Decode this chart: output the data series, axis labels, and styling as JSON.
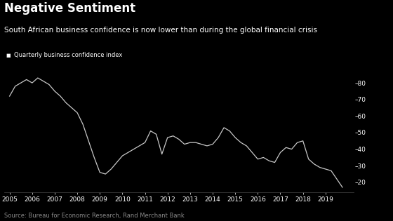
{
  "title": "Negative Sentiment",
  "subtitle": "South African business confidence is now lower than during the global financial crisis",
  "legend_label": "Quarterly business confidence index",
  "source": "Source: Bureau for Economic Research, Rand Merchant Bank",
  "background_color": "#000000",
  "text_color": "#ffffff",
  "line_color": "#c8c8c8",
  "grid_color": "#2a2a2a",
  "source_color": "#888888",
  "yticks": [
    20,
    30,
    40,
    50,
    60,
    70,
    80
  ],
  "xlim_start": 2004.75,
  "xlim_end": 2020.25,
  "ylim": [
    14,
    90
  ],
  "x": [
    2005.0,
    2005.25,
    2005.5,
    2005.75,
    2006.0,
    2006.25,
    2006.5,
    2006.75,
    2007.0,
    2007.25,
    2007.5,
    2007.75,
    2008.0,
    2008.25,
    2008.5,
    2008.75,
    2009.0,
    2009.25,
    2009.5,
    2009.75,
    2010.0,
    2010.25,
    2010.5,
    2010.75,
    2011.0,
    2011.25,
    2011.5,
    2011.75,
    2012.0,
    2012.25,
    2012.5,
    2012.75,
    2013.0,
    2013.25,
    2013.5,
    2013.75,
    2014.0,
    2014.25,
    2014.5,
    2014.75,
    2015.0,
    2015.25,
    2015.5,
    2015.75,
    2016.0,
    2016.25,
    2016.5,
    2016.75,
    2017.0,
    2017.25,
    2017.5,
    2017.75,
    2018.0,
    2018.25,
    2018.5,
    2018.75,
    2019.0,
    2019.25,
    2019.5,
    2019.75
  ],
  "y": [
    72,
    78,
    80,
    82,
    80,
    83,
    81,
    79,
    75,
    72,
    68,
    65,
    62,
    55,
    45,
    35,
    26,
    25,
    28,
    32,
    36,
    38,
    40,
    42,
    44,
    51,
    49,
    37,
    47,
    48,
    46,
    43,
    44,
    44,
    43,
    42,
    43,
    47,
    53,
    51,
    47,
    44,
    42,
    38,
    34,
    35,
    33,
    32,
    38,
    41,
    40,
    44,
    45,
    34,
    31,
    29,
    28,
    27,
    22,
    17
  ],
  "xticks": [
    2005,
    2006,
    2007,
    2008,
    2009,
    2010,
    2011,
    2012,
    2013,
    2014,
    2015,
    2016,
    2017,
    2018,
    2019
  ],
  "title_fontsize": 12,
  "subtitle_fontsize": 7.5,
  "legend_fontsize": 6,
  "tick_fontsize": 6.5,
  "source_fontsize": 6
}
